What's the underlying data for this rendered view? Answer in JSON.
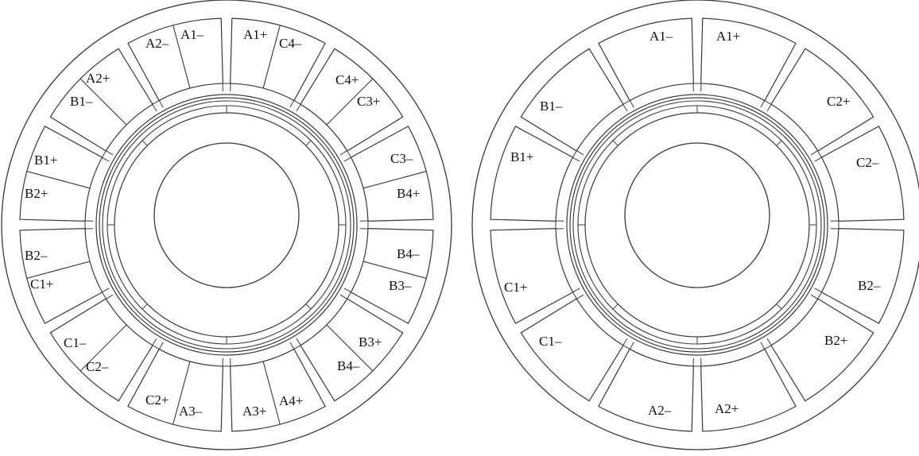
{
  "colors": {
    "stroke": "#3a3a3a",
    "background": "#ffffff",
    "text": "#111111"
  },
  "left_machine": {
    "coil_labels": [
      "A1–",
      "A2–",
      "A2+",
      "B1–",
      "B1+",
      "B2+",
      "B2–",
      "C1+",
      "C1–",
      "C2–",
      "C2+",
      "A3–",
      "A3+",
      "A4+",
      "B3+",
      "B4–",
      "B4–",
      "B3–",
      "C3–",
      "B4+",
      "C4+",
      "C3+",
      "A1+",
      "C4–"
    ]
  },
  "right_machine": {
    "coil_labels": [
      "A1–",
      "A1+",
      "B1–",
      "C2+",
      "B1+",
      "C2–",
      "C1+",
      "B2–",
      "C1–",
      "B2+",
      "A2–",
      "A2+"
    ]
  }
}
